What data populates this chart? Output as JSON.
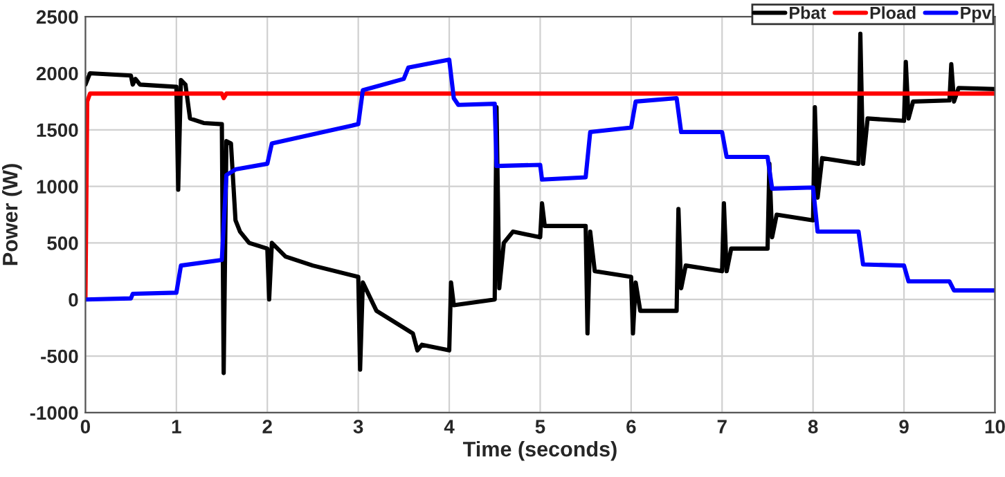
{
  "chart_data": {
    "type": "line",
    "xlabel": "Time (seconds)",
    "ylabel": "Power (W)",
    "xlim": [
      0,
      10
    ],
    "ylim": [
      -1000,
      2500
    ],
    "xticks": [
      0,
      1,
      2,
      3,
      4,
      5,
      6,
      7,
      8,
      9,
      10
    ],
    "yticks": [
      -1000,
      -500,
      0,
      500,
      1000,
      1500,
      2000,
      2500
    ],
    "grid": true,
    "legend": "top right",
    "marker": "none",
    "line_style": "solid",
    "series": [
      {
        "name": "Pbat",
        "color": "#000000",
        "x": [
          0,
          0.05,
          0.5,
          0.52,
          0.55,
          0.6,
          1.0,
          1.02,
          1.05,
          1.1,
          1.15,
          1.3,
          1.5,
          1.52,
          1.55,
          1.6,
          1.65,
          1.7,
          1.8,
          2.0,
          2.02,
          2.05,
          2.2,
          2.5,
          3.0,
          3.02,
          3.05,
          3.2,
          3.5,
          3.6,
          3.65,
          3.7,
          4.0,
          4.02,
          4.05,
          4.5,
          4.52,
          4.55,
          4.6,
          4.7,
          5.0,
          5.02,
          5.05,
          5.5,
          5.52,
          5.55,
          5.6,
          6.0,
          6.02,
          6.05,
          6.1,
          6.5,
          6.52,
          6.55,
          6.6,
          7.0,
          7.02,
          7.05,
          7.1,
          7.5,
          7.52,
          7.55,
          7.6,
          8.0,
          8.02,
          8.05,
          8.1,
          8.5,
          8.52,
          8.55,
          8.6,
          9.0,
          9.02,
          9.05,
          9.1,
          9.5,
          9.52,
          9.55,
          9.6,
          10
        ],
        "values": [
          1900,
          2000,
          1980,
          1900,
          1950,
          1900,
          1880,
          970,
          1940,
          1900,
          1600,
          1560,
          1550,
          -650,
          1400,
          1380,
          700,
          600,
          500,
          450,
          0,
          500,
          380,
          300,
          200,
          -620,
          150,
          -100,
          -250,
          -300,
          -450,
          -400,
          -450,
          150,
          -50,
          0,
          1700,
          100,
          500,
          600,
          550,
          850,
          650,
          650,
          -300,
          600,
          250,
          200,
          -300,
          150,
          -100,
          -100,
          800,
          100,
          300,
          250,
          850,
          250,
          450,
          450,
          1200,
          550,
          750,
          700,
          1700,
          900,
          1250,
          1200,
          2350,
          1200,
          1600,
          1580,
          2100,
          1600,
          1750,
          1760,
          2080,
          1750,
          1870,
          1860
        ]
      },
      {
        "name": "Pload",
        "color": "#ff0000",
        "x": [
          0,
          0.02,
          0.05,
          1.5,
          1.52,
          1.55,
          10
        ],
        "values": [
          0,
          1750,
          1820,
          1820,
          1780,
          1820,
          1820
        ]
      },
      {
        "name": "Ppv",
        "color": "#0000ff",
        "x": [
          0,
          0.5,
          0.52,
          1.0,
          1.05,
          1.5,
          1.55,
          1.65,
          2.0,
          2.05,
          3.0,
          3.05,
          3.5,
          3.55,
          4.0,
          4.05,
          4.1,
          4.5,
          4.52,
          5.0,
          5.02,
          5.5,
          5.55,
          6.0,
          6.05,
          6.5,
          6.55,
          7.0,
          7.05,
          7.5,
          7.55,
          8.0,
          8.05,
          8.5,
          8.55,
          9.0,
          9.05,
          9.5,
          9.55,
          10
        ],
        "values": [
          0,
          10,
          50,
          60,
          300,
          350,
          1100,
          1150,
          1200,
          1380,
          1550,
          1850,
          1950,
          2050,
          2120,
          1780,
          1720,
          1730,
          1180,
          1190,
          1060,
          1080,
          1480,
          1520,
          1750,
          1780,
          1480,
          1480,
          1260,
          1260,
          980,
          990,
          600,
          600,
          310,
          300,
          160,
          160,
          80,
          80
        ]
      }
    ]
  }
}
